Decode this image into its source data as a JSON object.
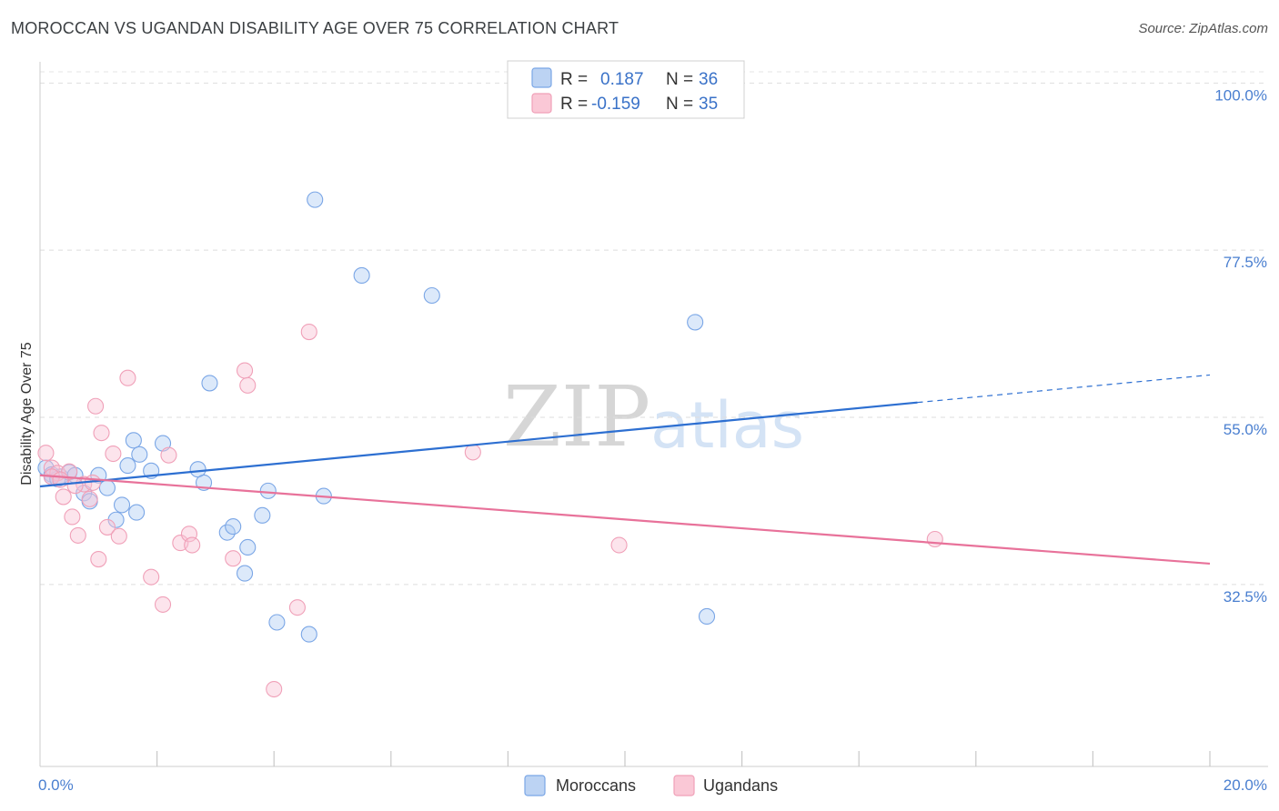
{
  "title": "MOROCCAN VS UGANDAN DISABILITY AGE OVER 75 CORRELATION CHART",
  "source": "Source: ZipAtlas.com",
  "watermark": {
    "zip": "ZIP",
    "atlas": "atlas"
  },
  "legend": {
    "rows": [
      {
        "r_label": "R =",
        "r_value": "0.187",
        "n_label": "N =",
        "n_value": "36"
      },
      {
        "r_label": "R =",
        "r_value": "-0.159",
        "n_label": "N =",
        "n_value": "35"
      }
    ]
  },
  "bottom_legend": {
    "moroccans": "Moroccans",
    "ugandans": "Ugandans"
  },
  "chart_data": {
    "type": "scatter",
    "title": "MOROCCAN VS UGANDAN DISABILITY AGE OVER 75 CORRELATION CHART",
    "xlabel": "",
    "ylabel": "Disability Age Over 75",
    "xlim": [
      0,
      20
    ],
    "ylim": [
      8,
      102
    ],
    "x_tick_labels": [
      "0.0%",
      "20.0%"
    ],
    "y_ticks": [
      32.5,
      55.0,
      77.5,
      100.0
    ],
    "y_tick_labels": [
      "32.5%",
      "55.0%",
      "77.5%",
      "100.0%"
    ],
    "colors": {
      "moroccans": "#7aa6e6",
      "ugandans": "#f0a0b8",
      "moroccans_line": "#2d6fd1",
      "ugandans_line": "#e8729a"
    },
    "series": [
      {
        "name": "Moroccans",
        "R": 0.187,
        "N": 36,
        "trend": {
          "x0": 0.0,
          "y0": 45.7,
          "x1": 15.0,
          "y1": 57.0,
          "dash_to_x": 20.0,
          "dash_to_y": 60.7
        },
        "points": [
          [
            0.1,
            48.2
          ],
          [
            0.2,
            47.3
          ],
          [
            0.35,
            47.0
          ],
          [
            0.5,
            47.6
          ],
          [
            0.6,
            47.2
          ],
          [
            0.75,
            44.8
          ],
          [
            0.85,
            43.7
          ],
          [
            1.0,
            47.2
          ],
          [
            1.15,
            45.5
          ],
          [
            1.3,
            41.2
          ],
          [
            1.4,
            43.2
          ],
          [
            1.5,
            48.5
          ],
          [
            1.6,
            51.9
          ],
          [
            1.7,
            50.0
          ],
          [
            1.9,
            47.8
          ],
          [
            2.1,
            51.5
          ],
          [
            2.7,
            48.0
          ],
          [
            2.8,
            46.2
          ],
          [
            2.9,
            59.6
          ],
          [
            3.2,
            39.5
          ],
          [
            3.3,
            40.3
          ],
          [
            3.5,
            34.0
          ],
          [
            3.55,
            37.5
          ],
          [
            4.7,
            84.3
          ],
          [
            3.8,
            41.8
          ],
          [
            3.9,
            45.1
          ],
          [
            4.05,
            27.4
          ],
          [
            4.6,
            25.8
          ],
          [
            4.85,
            44.4
          ],
          [
            5.5,
            74.1
          ],
          [
            6.7,
            71.4
          ],
          [
            11.2,
            67.8
          ],
          [
            11.4,
            28.2
          ],
          [
            0.2,
            47.0
          ],
          [
            0.3,
            46.7
          ],
          [
            1.65,
            42.2
          ]
        ]
      },
      {
        "name": "Ugandans",
        "R": -0.159,
        "N": 35,
        "trend": {
          "x0": 0.0,
          "y0": 47.2,
          "x1": 20.0,
          "y1": 35.3
        },
        "points": [
          [
            0.1,
            50.2
          ],
          [
            0.2,
            48.2
          ],
          [
            0.3,
            47.5
          ],
          [
            0.4,
            44.3
          ],
          [
            0.5,
            47.7
          ],
          [
            0.55,
            41.6
          ],
          [
            0.65,
            39.1
          ],
          [
            0.75,
            46.0
          ],
          [
            0.85,
            44.0
          ],
          [
            0.95,
            56.5
          ],
          [
            1.0,
            35.9
          ],
          [
            1.05,
            52.9
          ],
          [
            1.15,
            40.2
          ],
          [
            1.25,
            50.1
          ],
          [
            1.35,
            39.0
          ],
          [
            1.5,
            60.3
          ],
          [
            1.9,
            33.5
          ],
          [
            2.1,
            29.8
          ],
          [
            2.2,
            49.9
          ],
          [
            2.4,
            38.1
          ],
          [
            2.55,
            39.3
          ],
          [
            2.6,
            37.8
          ],
          [
            3.3,
            36.0
          ],
          [
            3.5,
            61.3
          ],
          [
            3.55,
            59.3
          ],
          [
            4.0,
            18.4
          ],
          [
            4.4,
            29.4
          ],
          [
            4.6,
            66.5
          ],
          [
            7.4,
            50.3
          ],
          [
            9.9,
            37.8
          ],
          [
            15.3,
            38.6
          ],
          [
            0.2,
            47.0
          ],
          [
            0.35,
            46.6
          ],
          [
            0.6,
            45.8
          ],
          [
            0.9,
            46.2
          ]
        ]
      }
    ]
  }
}
